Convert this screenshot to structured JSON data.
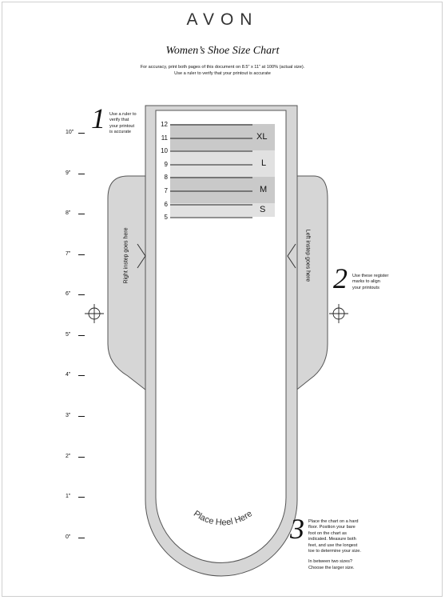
{
  "brand": "AVON",
  "title": "Women’s Shoe Size Chart",
  "subtitle_lines": [
    "For accuracy, print both pages of this document on 8.5” x 11” at 100% (actual size).",
    "Use a ruler to verify that your printout is accurate"
  ],
  "ruler_labels": [
    "10”",
    "9”",
    "8”",
    "7”",
    "6”",
    "5”",
    "4”",
    "3”",
    "2”",
    "1”",
    "0”"
  ],
  "steps": {
    "one": {
      "number": "1",
      "text": [
        "Use a ruler to",
        "verify that",
        "your printout",
        "is accurate"
      ]
    },
    "two": {
      "number": "2",
      "text": [
        "Use these register",
        "marks to align",
        "your printouts"
      ]
    },
    "three": {
      "number": "3",
      "text": [
        "Place the chart on a hard",
        "floor. Position your bare",
        "foot on the chart as",
        "indicated. Measure both",
        "feet, and use the longest",
        "toe to determine your size."
      ],
      "extra": [
        "In between two sizes?",
        "Choose the larger size."
      ]
    }
  },
  "size_numbers": [
    "12",
    "11",
    "10",
    "9",
    "8",
    "7",
    "6",
    "5"
  ],
  "size_letters": [
    "XL",
    "L",
    "M",
    "S"
  ],
  "instep": {
    "right": "Right instep goes here",
    "left": "Left instep goes here"
  },
  "heel": "Place Heel Here",
  "colors": {
    "band_dark": "#c9c9c9",
    "band_light": "#e1e1e1",
    "wing": "#d6d6d6",
    "outline": "#555555"
  }
}
